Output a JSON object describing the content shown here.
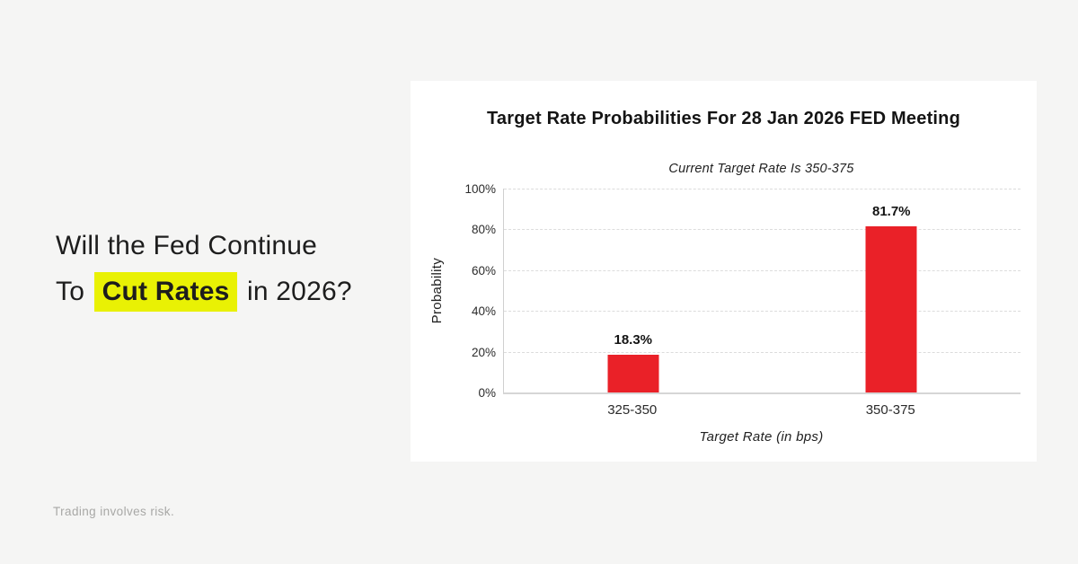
{
  "page": {
    "background": "#f5f5f4",
    "card_background": "#ffffff"
  },
  "headline": {
    "line1": "Will the Fed Continue",
    "line2_prefix": "To",
    "line2_highlight": "Cut Rates",
    "line2_suffix": "in 2026?",
    "highlight_color": "#e9f104",
    "text_color": "#1d1d1d"
  },
  "footer": {
    "disclaimer": "Trading involves risk."
  },
  "chart_data": {
    "type": "bar",
    "title": "Target Rate Probabilities For 28 Jan 2026 FED Meeting",
    "subtitle": "Current Target Rate Is 350-375",
    "categories": [
      "325-350",
      "350-375"
    ],
    "values": [
      18.3,
      81.7
    ],
    "value_labels": [
      "18.3%",
      "81.7%"
    ],
    "xlabel": "Target Rate (in bps)",
    "ylabel": "Probability",
    "ylim": [
      0,
      100
    ],
    "yticks": [
      "0%",
      "20%",
      "40%",
      "60%",
      "80%",
      "100%"
    ],
    "bar_color": "#ea2128",
    "grid": "horizontal-dashed",
    "legend": "none"
  }
}
